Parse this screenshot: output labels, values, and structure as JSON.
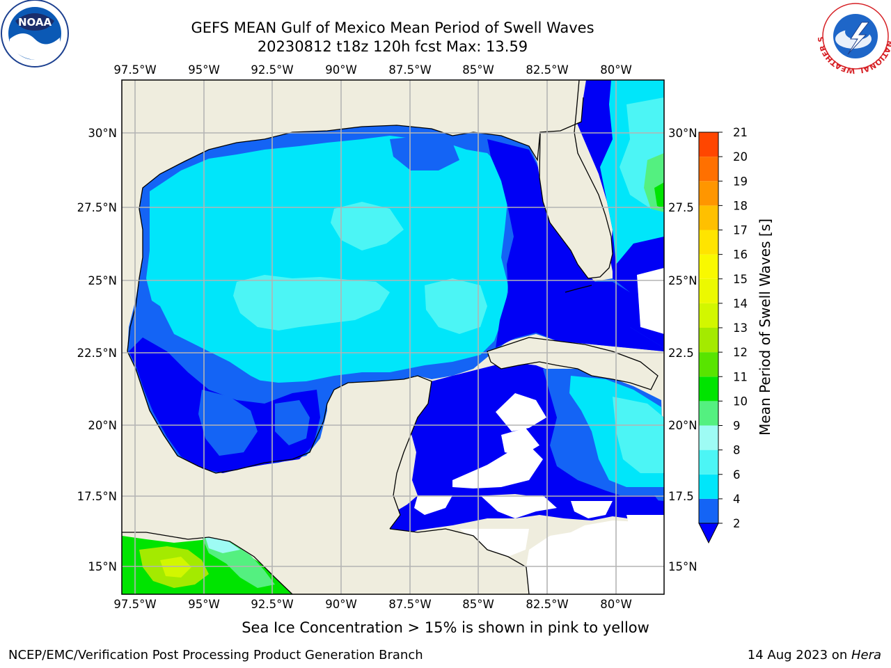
{
  "title_line1": "GEFS MEAN Gulf of Mexico Mean Period of Swell Waves",
  "title_line2": "20230812 t18z 120h fcst   Max: 13.59",
  "subnote": "Sea Ice Concentration > 15% is shown in pink to yellow",
  "footer": {
    "left": "NCEP/EMC/Verification Post Processing Product Generation Branch",
    "date": "14 Aug 2023 on ",
    "machine": "Hera"
  },
  "logos": {
    "noaa": "NOAA",
    "nws_ring": "NATIONAL WEATHER SERVICE"
  },
  "map": {
    "lon_ticks": [
      "97.5°W",
      "95°W",
      "92.5°W",
      "90°W",
      "87.5°W",
      "85°W",
      "82.5°W",
      "80°W"
    ],
    "lat_ticks_left": [
      "30°N",
      "27.5°N",
      "25°N",
      "22.5°N",
      "20°N",
      "17.5°N",
      "15°N"
    ],
    "lat_ticks_right": [
      "30°N",
      "27.5",
      "25°N",
      "22.5",
      "20°N",
      "17.5",
      "15°N"
    ],
    "colors": {
      "land": "#efedde",
      "grid": "#b4b4b4",
      "coast": "#000000"
    }
  },
  "colorbar": {
    "title": "Mean Period of Swell Waves [s]",
    "ticks": [
      "2",
      "4",
      "6",
      "8",
      "9",
      "10",
      "11",
      "12",
      "13",
      "14",
      "15",
      "16",
      "17",
      "18",
      "19",
      "20",
      "21"
    ],
    "colors": [
      "#1464f5",
      "#00e6fa",
      "#4cf5f5",
      "#9efbf4",
      "#54f080",
      "#00e400",
      "#58e400",
      "#a4ea00",
      "#d2f700",
      "#ecf900",
      "#f9f900",
      "#ffe400",
      "#ffc000",
      "#ff9600",
      "#ff7000",
      "#ff4600",
      "#ff1400"
    ],
    "extend_color": "#0000ff"
  }
}
